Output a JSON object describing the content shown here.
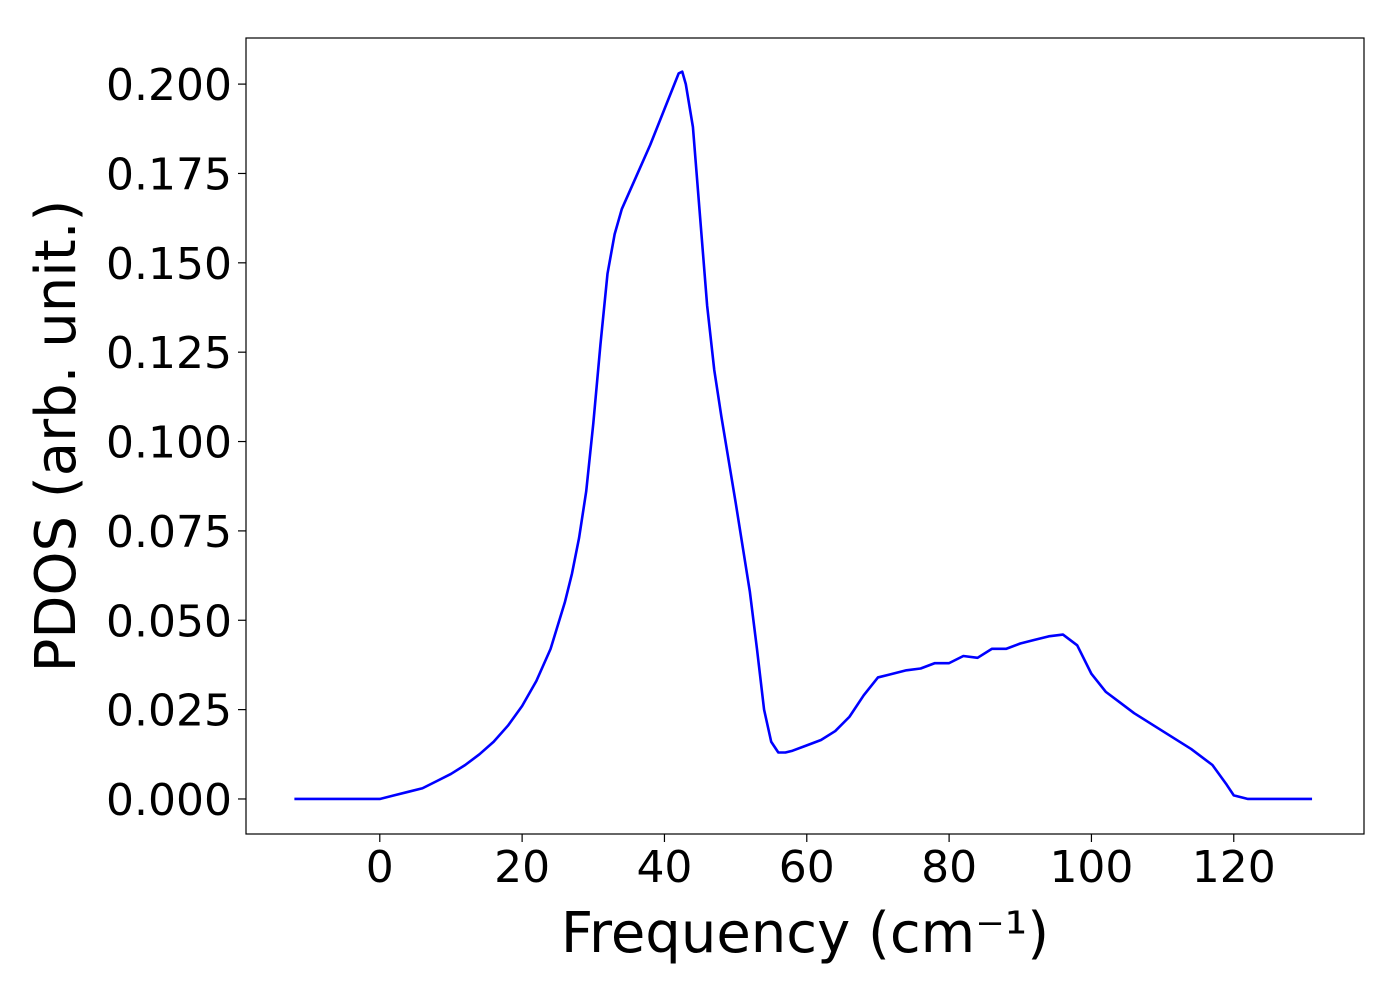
{
  "chart_data": {
    "type": "line",
    "x_label": "Frequency (cm⁻¹)",
    "y_label": "PDOS (arb. unit.)",
    "x": [
      -12,
      -8,
      -4,
      0,
      2,
      4,
      6,
      8,
      10,
      12,
      14,
      16,
      18,
      20,
      22,
      24,
      26,
      27,
      28,
      29,
      30,
      31,
      32,
      33,
      34,
      36,
      38,
      40,
      41,
      42,
      42.5,
      43,
      44,
      45,
      46,
      47,
      48,
      50,
      52,
      53,
      54,
      55,
      56,
      57,
      58,
      60,
      62,
      64,
      66,
      68,
      70,
      72,
      74,
      76,
      78,
      80,
      82,
      84,
      86,
      88,
      90,
      92,
      94,
      96,
      98,
      100,
      102,
      104,
      106,
      110,
      114,
      117,
      119,
      120,
      122,
      126,
      131
    ],
    "series": [
      {
        "color": "#0000ff",
        "values": [
          0,
          0,
          0,
          0,
          0.001,
          0.002,
          0.003,
          0.005,
          0.007,
          0.0095,
          0.0125,
          0.016,
          0.0205,
          0.026,
          0.033,
          0.042,
          0.055,
          0.063,
          0.073,
          0.086,
          0.105,
          0.127,
          0.147,
          0.158,
          0.165,
          0.174,
          0.183,
          0.193,
          0.198,
          0.203,
          0.2035,
          0.2,
          0.188,
          0.163,
          0.138,
          0.12,
          0.107,
          0.083,
          0.058,
          0.042,
          0.025,
          0.016,
          0.013,
          0.013,
          0.0135,
          0.015,
          0.0165,
          0.019,
          0.023,
          0.029,
          0.034,
          0.035,
          0.036,
          0.0365,
          0.038,
          0.038,
          0.04,
          0.0395,
          0.042,
          0.042,
          0.0435,
          0.0445,
          0.0455,
          0.046,
          0.043,
          0.035,
          0.03,
          0.027,
          0.024,
          0.019,
          0.014,
          0.0095,
          0.004,
          0.001,
          0,
          0,
          0
        ]
      }
    ],
    "xlim": [
      -18.8,
      138.3
    ],
    "ylim": [
      -0.0098,
      0.2129
    ],
    "xticks": [
      0,
      20,
      40,
      60,
      80,
      100,
      120
    ],
    "yticks": [
      {
        "value": 0,
        "label": "0.000"
      },
      {
        "value": 0.025,
        "label": "0.025"
      },
      {
        "value": 0.05,
        "label": "0.050"
      },
      {
        "value": 0.075,
        "label": "0.075"
      },
      {
        "value": 0.1,
        "label": "0.100"
      },
      {
        "value": 0.125,
        "label": "0.125"
      },
      {
        "value": 0.15,
        "label": "0.150"
      },
      {
        "value": 0.175,
        "label": "0.175"
      },
      {
        "value": 0.2,
        "label": "0.200"
      }
    ]
  }
}
